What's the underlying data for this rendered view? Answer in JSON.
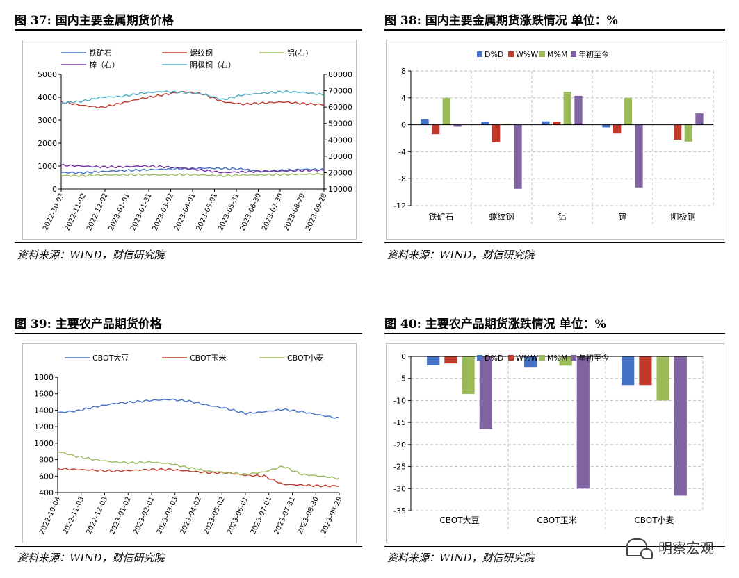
{
  "watermark": "明察宏观",
  "panels": [
    {
      "title": "图 37:  国内主要金属期货价格",
      "source": "资料来源：WIND，财信研究院",
      "chart_data": {
        "type": "line",
        "legend": [
          "铁矿石",
          "螺纹钢",
          "铝(右)",
          "锌（右）",
          "阴极铜（右）"
        ],
        "left_axis": {
          "ylim": [
            0,
            5000
          ],
          "ticks": [
            0,
            1000,
            2000,
            3000,
            4000,
            5000
          ]
        },
        "right_axis": {
          "ylim": [
            10000,
            80000
          ],
          "ticks": [
            10000,
            20000,
            30000,
            40000,
            50000,
            60000,
            70000,
            80000
          ]
        },
        "x_ticks": [
          "2022-10-03",
          "2022-11-02",
          "2022-12-02",
          "2023-01-01",
          "2023-01-31",
          "2023-03-02",
          "2023-04-01",
          "2023-05-01",
          "2023-05-31",
          "2023-06-30",
          "2023-07-30",
          "2023-08-29",
          "2023-09-28"
        ],
        "series": [
          {
            "name": "铁矿石",
            "axis": "left",
            "color": "#4472c4",
            "values": [
              720,
              700,
              760,
              800,
              830,
              860,
              880,
              910,
              900,
              870,
              760,
              820,
              860,
              850
            ]
          },
          {
            "name": "螺纹钢",
            "axis": "left",
            "color": "#c0392b",
            "values": [
              3800,
              3650,
              3550,
              3750,
              3950,
              4100,
              4250,
              4150,
              3800,
              3700,
              3750,
              3800,
              3720,
              3680
            ]
          },
          {
            "name": "铝(右)",
            "axis": "right",
            "color": "#9bbb59",
            "values": [
              18200,
              18100,
              18500,
              18600,
              18800,
              18500,
              18800,
              18500,
              18000,
              18500,
              18600,
              18800,
              19000,
              19300
            ]
          },
          {
            "name": "锌（右）",
            "axis": "right",
            "color": "#7030a0",
            "values": [
              24500,
              24000,
              23500,
              23500,
              24000,
              23600,
              22800,
              21500,
              20000,
              20500,
              20800,
              21000,
              21300,
              21500
            ]
          },
          {
            "name": "阴极铜（右）",
            "axis": "right",
            "color": "#4bacc6",
            "values": [
              62500,
              63500,
              66000,
              66500,
              68500,
              69500,
              69000,
              68000,
              64500,
              67500,
              68500,
              69500,
              69000,
              67500
            ]
          }
        ]
      }
    },
    {
      "title": "图 38:  国内主要金属期货涨跌情况   单位：%",
      "source": "资料来源：WIND，财信研究院",
      "chart_data": {
        "type": "bar",
        "categories": [
          "铁矿石",
          "螺纹钢",
          "铝",
          "锌",
          "阴极铜"
        ],
        "ylim": [
          -12,
          8
        ],
        "ticks": [
          -12,
          -8,
          -4,
          0,
          4,
          8
        ],
        "series": [
          {
            "name": "D%D",
            "color": "#4472c4",
            "values": [
              0.8,
              0.4,
              0.5,
              -0.4,
              0.0
            ]
          },
          {
            "name": "W%W",
            "color": "#c0392b",
            "values": [
              -1.4,
              -2.6,
              0.4,
              -1.3,
              -2.2
            ]
          },
          {
            "name": "M%M",
            "color": "#9bbb59",
            "values": [
              4.0,
              0.1,
              4.9,
              4.0,
              -2.5
            ]
          },
          {
            "name": "年初至今",
            "color": "#8064a2",
            "values": [
              -0.3,
              -9.5,
              4.3,
              -9.3,
              1.7
            ]
          }
        ]
      }
    },
    {
      "title": "图 39:  主要农产品期货价格",
      "source": "资料来源：WIND，财信研究院",
      "chart_data": {
        "type": "line",
        "legend": [
          "CBOT大豆",
          "CBOT玉米",
          "CBOT小麦"
        ],
        "ylim": [
          400,
          1800
        ],
        "ticks": [
          400,
          600,
          800,
          1000,
          1200,
          1400,
          1600,
          1800
        ],
        "x_ticks": [
          "2022-10-04",
          "2022-11-03",
          "2022-12-03",
          "2023-01-02",
          "2023-02-01",
          "2023-03-03",
          "2023-04-02",
          "2023-05-02",
          "2023-06-01",
          "2023-07-01",
          "2023-07-31",
          "2023-08-30",
          "2023-09-29"
        ],
        "series": [
          {
            "name": "CBOT大豆",
            "color": "#4472c4",
            "values": [
              1370,
              1390,
              1440,
              1480,
              1500,
              1520,
              1530,
              1510,
              1460,
              1420,
              1360,
              1380,
              1410,
              1380,
              1340,
              1300
            ]
          },
          {
            "name": "CBOT玉米",
            "color": "#c0392b",
            "values": [
              690,
              680,
              670,
              660,
              670,
              680,
              680,
              660,
              640,
              640,
              610,
              600,
              500,
              490,
              480,
              480
            ]
          },
          {
            "name": "CBOT小麦",
            "color": "#9bbb59",
            "values": [
              900,
              840,
              800,
              770,
              760,
              770,
              750,
              700,
              660,
              640,
              620,
              650,
              720,
              620,
              600,
              570
            ]
          }
        ]
      }
    },
    {
      "title": "图 40:  主要农产品期货涨跌情况   单位：%",
      "source": "资料来源：WIND，财信研究院",
      "chart_data": {
        "type": "bar",
        "categories": [
          "CBOT大豆",
          "CBOT玉米",
          "CBOT小麦"
        ],
        "ylim": [
          -35,
          0
        ],
        "ticks": [
          -35,
          -30,
          -25,
          -20,
          -15,
          -10,
          -5,
          0
        ],
        "series": [
          {
            "name": "D%D",
            "color": "#4472c4",
            "values": [
              -2.0,
              -2.4,
              -6.5
            ]
          },
          {
            "name": "W%W",
            "color": "#c0392b",
            "values": [
              -1.6,
              0.0,
              -6.5
            ]
          },
          {
            "name": "M%M",
            "color": "#9bbb59",
            "values": [
              -8.5,
              -2.1,
              -10.0
            ]
          },
          {
            "name": "年初至今",
            "color": "#8064a2",
            "values": [
              -16.5,
              -30.0,
              -31.6
            ]
          }
        ]
      }
    }
  ]
}
